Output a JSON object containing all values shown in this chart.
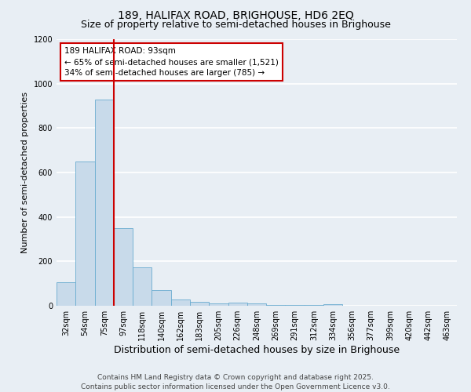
{
  "title1": "189, HALIFAX ROAD, BRIGHOUSE, HD6 2EQ",
  "title2": "Size of property relative to semi-detached houses in Brighouse",
  "xlabel": "Distribution of semi-detached houses by size in Brighouse",
  "ylabel": "Number of semi-detached properties",
  "categories": [
    "32sqm",
    "54sqm",
    "75sqm",
    "97sqm",
    "118sqm",
    "140sqm",
    "162sqm",
    "183sqm",
    "205sqm",
    "226sqm",
    "248sqm",
    "269sqm",
    "291sqm",
    "312sqm",
    "334sqm",
    "356sqm",
    "377sqm",
    "399sqm",
    "420sqm",
    "442sqm",
    "463sqm"
  ],
  "values": [
    107,
    651,
    930,
    350,
    172,
    70,
    28,
    18,
    12,
    15,
    12,
    5,
    3,
    2,
    8,
    1,
    0,
    0,
    0,
    0,
    0
  ],
  "bar_color": "#c8daea",
  "bar_edge_color": "#6aacd0",
  "vline_color": "#cc0000",
  "vline_x_index": 2.5,
  "annotation_title": "189 HALIFAX ROAD: 93sqm",
  "annotation_line1": "← 65% of semi-detached houses are smaller (1,521)",
  "annotation_line2": "34% of semi-detached houses are larger (785) →",
  "annotation_box_color": "#ffffff",
  "annotation_box_edge": "#cc0000",
  "ylim": [
    0,
    1200
  ],
  "yticks": [
    0,
    200,
    400,
    600,
    800,
    1000,
    1200
  ],
  "footer1": "Contains HM Land Registry data © Crown copyright and database right 2025.",
  "footer2": "Contains public sector information licensed under the Open Government Licence v3.0.",
  "bg_color": "#e8eef4",
  "plot_bg_color": "#e8eef4",
  "grid_color": "#ffffff",
  "title1_fontsize": 10,
  "title2_fontsize": 9,
  "xlabel_fontsize": 9,
  "ylabel_fontsize": 8,
  "tick_fontsize": 7,
  "ann_fontsize": 7.5,
  "footer_fontsize": 6.5
}
